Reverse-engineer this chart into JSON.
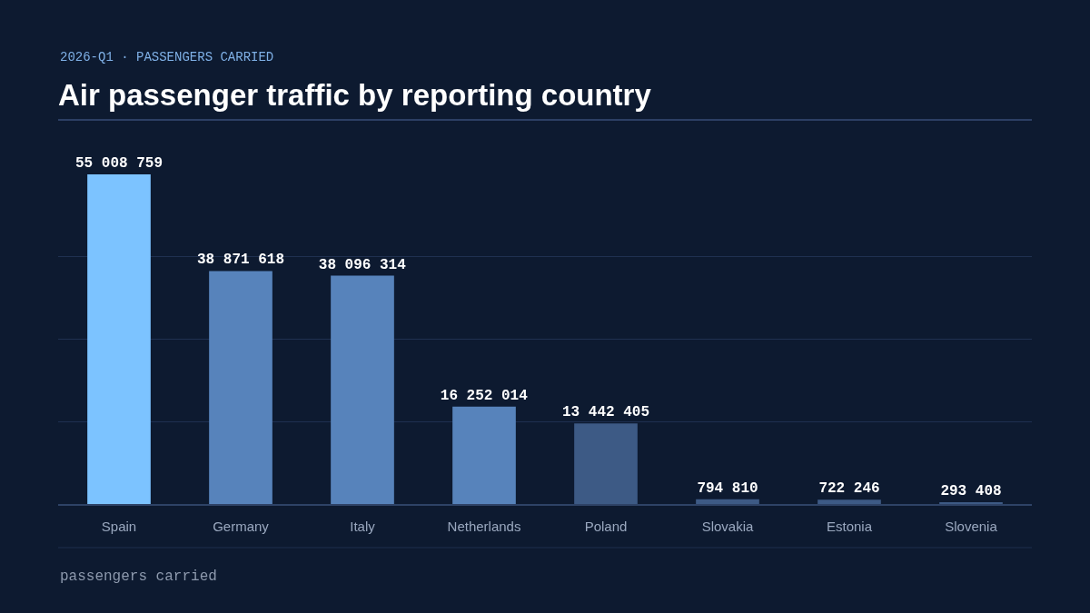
{
  "chart_data": {
    "type": "bar",
    "title": "Air passenger traffic by reporting country",
    "subtitle": "2026-Q1 · PASSENGERS CARRIED",
    "categories": [
      "Spain",
      "Germany",
      "Italy",
      "Netherlands",
      "Poland",
      "Slovakia",
      "Estonia",
      "Slovenia"
    ],
    "values": [
      55008759,
      38871618,
      38096314,
      16252014,
      13442405,
      794810,
      722246,
      293408
    ],
    "colors": [
      "#7cc3ff",
      "#5783bb",
      "#5783bb",
      "#5783bb",
      "#3d5a85",
      "#3d5a85",
      "#3d5a85",
      "#3d5a85"
    ],
    "ylim": [
      0,
      55008759
    ],
    "yticks": [
      {
        "value": 13752190,
        "label": null
      },
      {
        "value": 27504380,
        "label": null
      },
      {
        "value": 41256569,
        "label": null
      }
    ],
    "grid": "y",
    "data_labels": true,
    "tick_labels": "x",
    "annotations": [
      "passengers carried"
    ]
  }
}
